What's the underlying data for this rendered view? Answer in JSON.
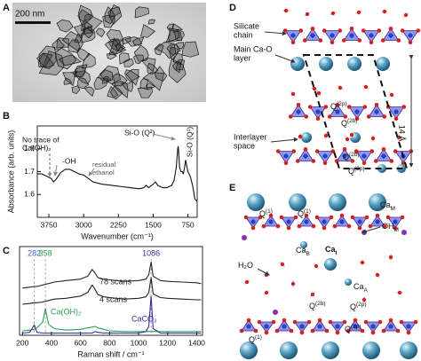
{
  "panels": {
    "A": {
      "label": "A",
      "scale_bar": "200 nm"
    },
    "D": {
      "label": "D",
      "callouts": [
        [
          "Silicate",
          "chain"
        ],
        [
          "Main Ca-O",
          "layer"
        ],
        [
          "Interlayer",
          "space"
        ]
      ],
      "spacing": "14 Å",
      "sites": [
        {
          "text": "Q",
          "sup": "(2p)"
        },
        {
          "text": "Q",
          "sup": "(2b)"
        },
        {
          "text": "Q",
          "sup": "(2b)"
        },
        {
          "text": "Q",
          "sup": "(2p)"
        }
      ]
    },
    "E": {
      "label": "E",
      "sites": [
        {
          "text": "Ca",
          "sub": "M"
        },
        {
          "text": "OH",
          "sub": "M"
        },
        {
          "text": "Q",
          "sup": "(1)"
        },
        {
          "text": "Q",
          "sup": "(1)"
        },
        {
          "text": "Ca",
          "sub": "B"
        },
        {
          "text": "H₂O"
        },
        {
          "text": "Ca",
          "sub": "I"
        },
        {
          "text": "Ca",
          "sub": "A"
        },
        {
          "text": "Q",
          "sup": "(2b)"
        },
        {
          "text": "Q",
          "sup": "(2p)"
        },
        {
          "text": "Q",
          "sup": "(1)"
        },
        {
          "text": "Q",
          "sup": "(2p)"
        }
      ]
    }
  },
  "chart_data": [
    {
      "type": "line",
      "panel": "B",
      "x_label": "Wavenumber (cm⁻¹)",
      "y_label": "Absorbance (arb. units)",
      "annotations": [
        "No trace of",
        "Ca(OH)₂",
        "-OH",
        "residual",
        "ethanol",
        "Si-O (Q²)",
        "Si-O (Q¹)"
      ],
      "xlim": [
        4000,
        550
      ],
      "xticks": [
        3750,
        3000,
        2250,
        1500,
        750
      ],
      "ylim": [
        1.5,
        1.9
      ],
      "yticks": [
        1.6,
        1.7,
        1.8
      ],
      "x": [
        4000,
        3900,
        3800,
        3700,
        3650,
        3600,
        3500,
        3400,
        3300,
        3200,
        3100,
        3000,
        2900,
        2800,
        2600,
        2400,
        2200,
        2000,
        1800,
        1700,
        1650,
        1600,
        1500,
        1450,
        1400,
        1300,
        1200,
        1100,
        1050,
        1000,
        970,
        960,
        950,
        930,
        900,
        870,
        850,
        820,
        800,
        780,
        750,
        700,
        650,
        600,
        550
      ],
      "series": [
        {
          "color": "#111111",
          "values": [
            1.69,
            1.69,
            1.68,
            1.67,
            1.655,
            1.665,
            1.695,
            1.71,
            1.71,
            1.7,
            1.69,
            1.685,
            1.67,
            1.655,
            1.645,
            1.64,
            1.635,
            1.63,
            1.625,
            1.63,
            1.64,
            1.63,
            1.645,
            1.655,
            1.64,
            1.63,
            1.63,
            1.64,
            1.66,
            1.72,
            1.8,
            1.81,
            1.79,
            1.72,
            1.7,
            1.7,
            1.69,
            1.72,
            1.75,
            1.73,
            1.7,
            1.68,
            1.64,
            1.58,
            1.57
          ]
        }
      ]
    },
    {
      "type": "line",
      "panel": "C",
      "x_label": "Raman shift / cm⁻¹",
      "xlim": [
        180,
        1440
      ],
      "xticks": [
        200,
        400,
        600,
        800,
        1000,
        1200,
        1400
      ],
      "ylim": [
        0,
        12
      ],
      "markers": [
        282,
        358,
        1086
      ],
      "marker_colors": [
        "#3a5fc0",
        "#2aa050",
        "#3a2fa0"
      ],
      "x": [
        200,
        250,
        282,
        300,
        340,
        358,
        380,
        420,
        500,
        600,
        650,
        680,
        700,
        720,
        760,
        800,
        900,
        1000,
        1050,
        1070,
        1086,
        1100,
        1150,
        1200,
        1300,
        1400,
        1430
      ],
      "series": [
        {
          "name": "78 scans",
          "color": "#222222",
          "values": [
            6.4,
            6.5,
            6.6,
            6.6,
            6.8,
            6.9,
            7.0,
            7.2,
            7.4,
            7.6,
            8.0,
            8.9,
            8.4,
            7.8,
            7.6,
            7.5,
            7.3,
            7.4,
            7.6,
            8.2,
            9.9,
            8.0,
            7.4,
            7.3,
            7.2,
            7.1,
            7.0
          ]
        },
        {
          "name": "4 scans",
          "color": "#222222",
          "values": [
            4.2,
            4.3,
            4.4,
            4.4,
            4.5,
            4.6,
            4.7,
            4.9,
            5.0,
            5.3,
            5.8,
            6.8,
            6.2,
            5.5,
            5.2,
            5.1,
            4.9,
            5.0,
            5.2,
            5.8,
            7.8,
            5.6,
            5.1,
            5.0,
            4.9,
            4.8,
            4.8
          ]
        },
        {
          "name": "Ca(OH)₂",
          "color": "#2aa050",
          "values": [
            0.6,
            0.7,
            0.8,
            1.0,
            1.8,
            3.6,
            1.5,
            0.9,
            0.7,
            0.8,
            1.0,
            1.1,
            1.2,
            1.0,
            0.8,
            0.6,
            0.5,
            0.5,
            0.5,
            0.5,
            0.5,
            0.5,
            0.5,
            0.5,
            0.5,
            0.5,
            0.5
          ]
        },
        {
          "name": "CaCO₃",
          "color": "#3a2fa0",
          "values": [
            0.3,
            0.4,
            1.4,
            0.4,
            0.3,
            0.3,
            0.3,
            0.3,
            0.3,
            0.3,
            0.3,
            0.3,
            0.5,
            0.4,
            0.3,
            0.3,
            0.3,
            0.3,
            0.5,
            1.2,
            5.3,
            0.9,
            0.3,
            0.3,
            0.3,
            0.3,
            0.3
          ]
        }
      ]
    }
  ]
}
